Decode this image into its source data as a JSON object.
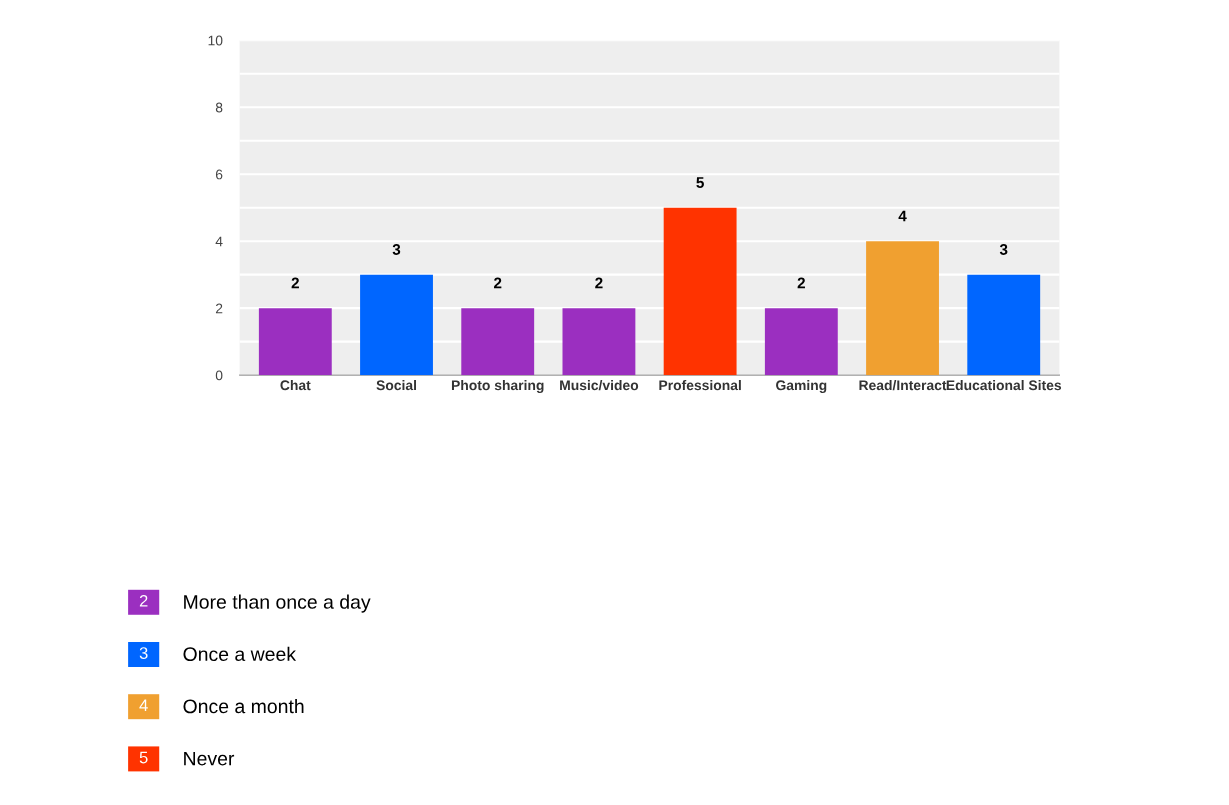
{
  "chart_data": {
    "type": "bar",
    "annotations": [
      "2",
      "3",
      "4",
      "5"
    ],
    "categories": [
      "Chat",
      "Social",
      "Photo sharing",
      "Music/video",
      "Professional",
      "Gaming",
      "Read/Interact",
      "Educational Sites"
    ],
    "series": [
      {
        "name": "More than once a day",
        "color": "#9b2fc0",
        "values": [
          2,
          null,
          2,
          2,
          null,
          2,
          null,
          null
        ]
      },
      {
        "name": "Once a week",
        "color": "#0066ff",
        "values": [
          null,
          3,
          null,
          null,
          null,
          null,
          null,
          3
        ]
      },
      {
        "name": "Once a month",
        "color": "#f0a030",
        "values": [
          null,
          null,
          null,
          null,
          null,
          null,
          4,
          null
        ]
      },
      {
        "name": "Never",
        "color": "#ff3300",
        "values": [
          null,
          null,
          null,
          null,
          5,
          null,
          null,
          null
        ]
      }
    ],
    "ylim": [
      0,
      10
    ],
    "yticks": [
      0,
      {
        "value": 1,
        "label": null
      },
      2,
      {
        "value": 3,
        "label": null
      },
      4,
      {
        "value": 5,
        "label": null
      },
      6,
      {
        "value": 7,
        "label": null
      },
      8,
      {
        "value": 9,
        "label": null
      },
      10
    ],
    "grid": "y",
    "data_labels": true,
    "legend": "bottom left"
  }
}
